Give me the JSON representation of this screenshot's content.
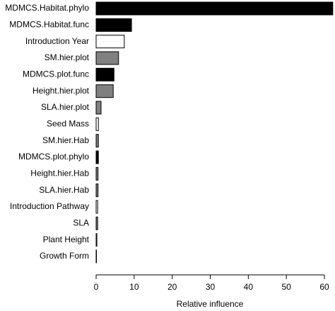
{
  "chart_data": {
    "type": "barh",
    "categories": [
      "MDMCS.Habitat.phylo",
      "MDMCS.Habitat.func",
      "Introduction Year",
      "SM.hier.plot",
      "MDMCS.plot.func",
      "Height.hier.plot",
      "SLA.hier.plot",
      "Seed Mass",
      "SM.hier.Hab",
      "MDMCS.plot.phylo",
      "Height.hier.Hab",
      "SLA.hier.Hab",
      "Introduction Pathway",
      "SLA",
      "Plant Height",
      "Growth Form"
    ],
    "values": [
      62.2,
      9.3,
      7.4,
      5.9,
      4.7,
      4.5,
      1.3,
      0.6,
      0.6,
      0.6,
      0.5,
      0.5,
      0.4,
      0.4,
      0.2,
      0.1
    ],
    "colors": [
      "#000000",
      "#000000",
      "#ffffff",
      "#808080",
      "#000000",
      "#808080",
      "#808080",
      "#ffffff",
      "#808080",
      "#000000",
      "#808080",
      "#808080",
      "#ffffff",
      "#808080",
      "#ffffff",
      "#ffffff"
    ],
    "xlabel": "Relative influence",
    "xlim": [
      0,
      60
    ],
    "xticks": [
      0,
      10,
      20,
      30,
      40,
      50,
      60
    ]
  }
}
